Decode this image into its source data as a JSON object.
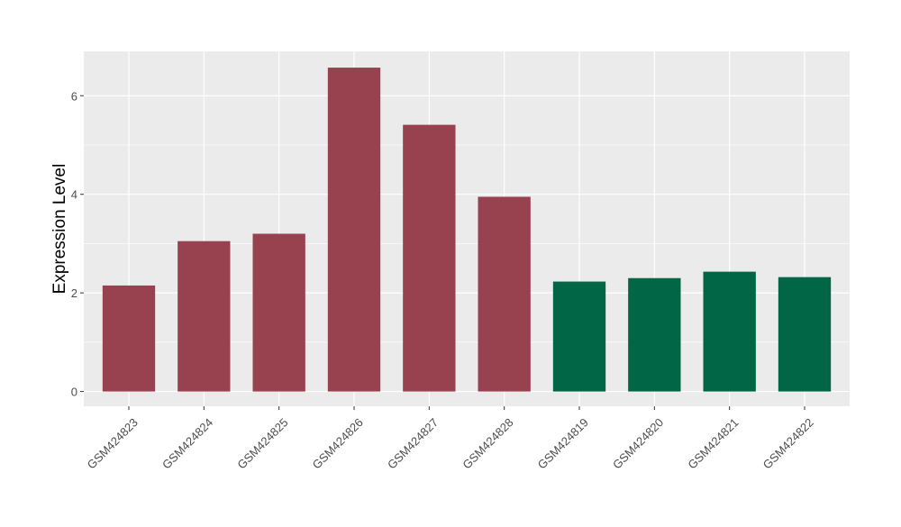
{
  "chart_data": {
    "type": "bar",
    "categories": [
      "GSM424823",
      "GSM424824",
      "GSM424825",
      "GSM424826",
      "GSM424827",
      "GSM424828",
      "GSM424819",
      "GSM424820",
      "GSM424821",
      "GSM424822"
    ],
    "values": [
      2.15,
      3.05,
      3.2,
      6.57,
      5.41,
      3.95,
      2.23,
      2.3,
      2.43,
      2.32
    ],
    "bar_colors": [
      "#99424F",
      "#99424F",
      "#99424F",
      "#99424F",
      "#99424F",
      "#99424F",
      "#006645",
      "#006645",
      "#006645",
      "#006645"
    ],
    "title": "",
    "xlabel": "",
    "ylabel": "Expression Level",
    "ylim": [
      -0.3,
      6.9
    ],
    "yticks": [
      0,
      2,
      4,
      6
    ],
    "ytick_labels": [
      "0",
      "2",
      "4",
      "6"
    ],
    "grid": true,
    "panel_background": "#EBEBEB",
    "grid_color": "#FFFFFF"
  }
}
